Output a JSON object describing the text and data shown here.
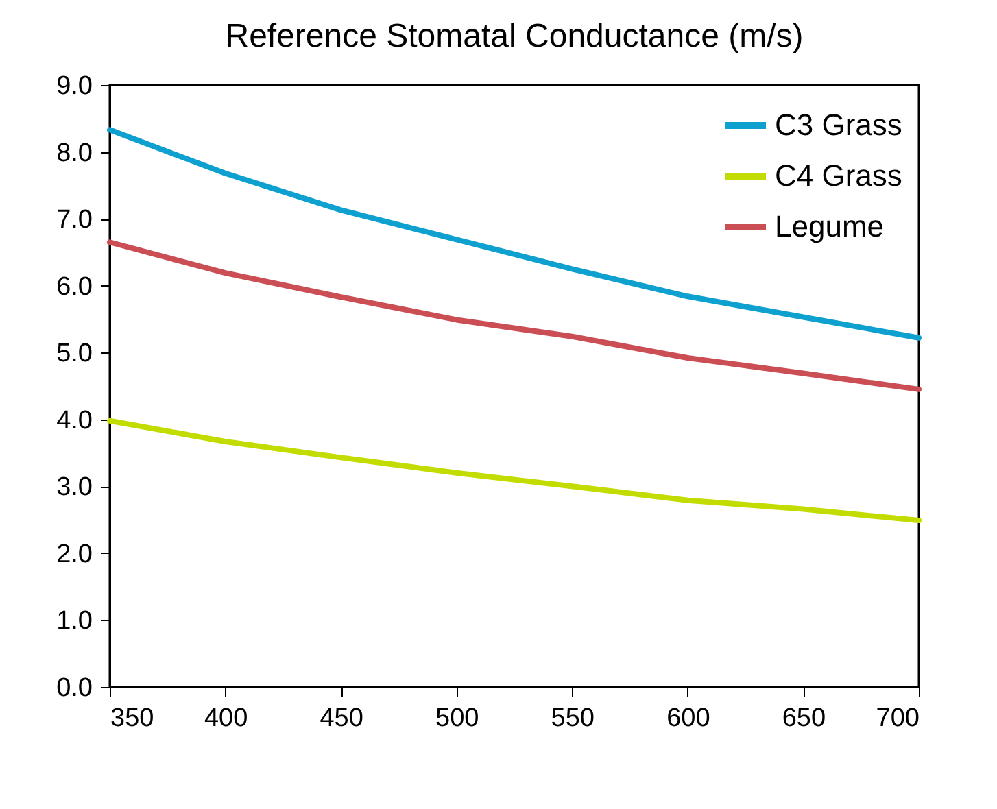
{
  "chart_data": {
    "type": "line",
    "title": "Reference Stomatal Conductance (m/s)",
    "x": [
      350,
      400,
      450,
      500,
      550,
      600,
      650,
      700
    ],
    "series": [
      {
        "name": "C3 Grass",
        "color": "#0ea0cf",
        "values": [
          8.33,
          7.68,
          7.13,
          6.69,
          6.25,
          5.84,
          5.53,
          5.22
        ]
      },
      {
        "name": "C4 Grass",
        "color": "#c2dc00",
        "values": [
          3.98,
          3.67,
          3.43,
          3.2,
          3.0,
          2.79,
          2.66,
          2.49
        ]
      },
      {
        "name": "Legume",
        "color": "#cc4e55",
        "values": [
          6.65,
          6.19,
          5.83,
          5.49,
          5.24,
          4.92,
          4.69,
          4.45
        ]
      }
    ],
    "xlim": [
      350,
      700
    ],
    "xticks": [
      350,
      400,
      450,
      500,
      550,
      600,
      650,
      700
    ],
    "ylim": [
      0,
      9
    ],
    "yticks": [
      {
        "value": 0,
        "label": "0.0"
      },
      {
        "value": 1,
        "label": "1.0"
      },
      {
        "value": 2,
        "label": "2.0"
      },
      {
        "value": 3,
        "label": "3.0"
      },
      {
        "value": 4,
        "label": "4.0"
      },
      {
        "value": 5,
        "label": "5.0"
      },
      {
        "value": 6,
        "label": "6.0"
      },
      {
        "value": 7,
        "label": "7.0"
      },
      {
        "value": 8,
        "label": "8.0"
      },
      {
        "value": 9,
        "label": "9.0"
      }
    ],
    "grid": false,
    "legend": "top right",
    "marker": "none",
    "line_style": "solid"
  }
}
